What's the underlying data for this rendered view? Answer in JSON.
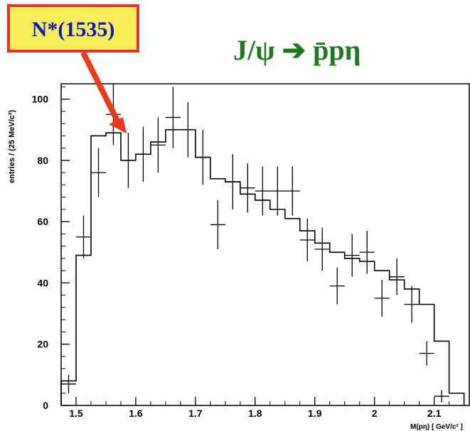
{
  "chart_data": {
    "type": "histogram",
    "title": "J/ψ → p̄pη",
    "title_parts": {
      "prefix": "J/ψ ",
      "arrow": "➔",
      "particles": " p̄pη"
    },
    "xlabel": "M(pη) [ GeV/c² ]",
    "ylabel": "entries / (25 MeV/c²)",
    "xlim": [
      1.475,
      2.16
    ],
    "ylim": [
      0,
      105
    ],
    "x_ticks": [
      1.5,
      1.6,
      1.7,
      1.8,
      1.9,
      2,
      2.1
    ],
    "x_tick_labels": [
      "1.5",
      "1.6",
      "1.7",
      "1.8",
      "1.9",
      "2",
      "2.1"
    ],
    "y_ticks": [
      0,
      20,
      40,
      60,
      80,
      100
    ],
    "y_tick_labels": [
      "0",
      "20",
      "40",
      "60",
      "80",
      "100"
    ],
    "bin_width": 0.025,
    "mc_histogram": {
      "bin_edges": [
        1.475,
        1.5,
        1.525,
        1.55,
        1.575,
        1.6,
        1.625,
        1.65,
        1.675,
        1.7,
        1.725,
        1.75,
        1.775,
        1.8,
        1.825,
        1.85,
        1.875,
        1.9,
        1.925,
        1.95,
        1.975,
        2.0,
        2.025,
        2.05,
        2.075,
        2.1,
        2.125,
        2.15
      ],
      "values": [
        8,
        49,
        88,
        89,
        80,
        82,
        86,
        90,
        90,
        81,
        74,
        73,
        69,
        67,
        64,
        61,
        57,
        53,
        50,
        48,
        47,
        44,
        41,
        38,
        33,
        21,
        4
      ]
    },
    "data_points": [
      {
        "x": 1.4875,
        "y": 7,
        "yerr": 3
      },
      {
        "x": 1.5125,
        "y": 55,
        "yerr": 7
      },
      {
        "x": 1.5375,
        "y": 76,
        "yerr": 8
      },
      {
        "x": 1.5625,
        "y": 95,
        "yerr": 10
      },
      {
        "x": 1.5875,
        "y": 80,
        "yerr": 9
      },
      {
        "x": 1.6125,
        "y": 82,
        "yerr": 9
      },
      {
        "x": 1.6375,
        "y": 85,
        "yerr": 9
      },
      {
        "x": 1.6625,
        "y": 94,
        "yerr": 10
      },
      {
        "x": 1.6875,
        "y": 90,
        "yerr": 9
      },
      {
        "x": 1.7125,
        "y": 81,
        "yerr": 9
      },
      {
        "x": 1.7375,
        "y": 59,
        "yerr": 8
      },
      {
        "x": 1.7625,
        "y": 73,
        "yerr": 9
      },
      {
        "x": 1.7875,
        "y": 71,
        "yerr": 8
      },
      {
        "x": 1.8125,
        "y": 70,
        "yerr": 8
      },
      {
        "x": 1.8375,
        "y": 70,
        "yerr": 8
      },
      {
        "x": 1.8625,
        "y": 70,
        "yerr": 8
      },
      {
        "x": 1.8875,
        "y": 54,
        "yerr": 7
      },
      {
        "x": 1.9125,
        "y": 51,
        "yerr": 7
      },
      {
        "x": 1.9375,
        "y": 39,
        "yerr": 6
      },
      {
        "x": 1.9625,
        "y": 49,
        "yerr": 7
      },
      {
        "x": 1.9875,
        "y": 50,
        "yerr": 7
      },
      {
        "x": 2.0125,
        "y": 35,
        "yerr": 6
      },
      {
        "x": 2.0375,
        "y": 42,
        "yerr": 6
      },
      {
        "x": 2.0625,
        "y": 33,
        "yerr": 6
      },
      {
        "x": 2.0875,
        "y": 17,
        "yerr": 4
      },
      {
        "x": 2.1125,
        "y": 3,
        "yerr": 2
      }
    ],
    "annotation": {
      "text": "N*(1535)",
      "points_to": {
        "x": 1.55,
        "y": 89
      },
      "box_fill": "#f5ee58",
      "box_border": "#e03030",
      "text_color": "#1212c8",
      "arrow_color": "#ee3a1c"
    },
    "title_color": "#1f7a1f",
    "grid": false,
    "legend": "none"
  }
}
